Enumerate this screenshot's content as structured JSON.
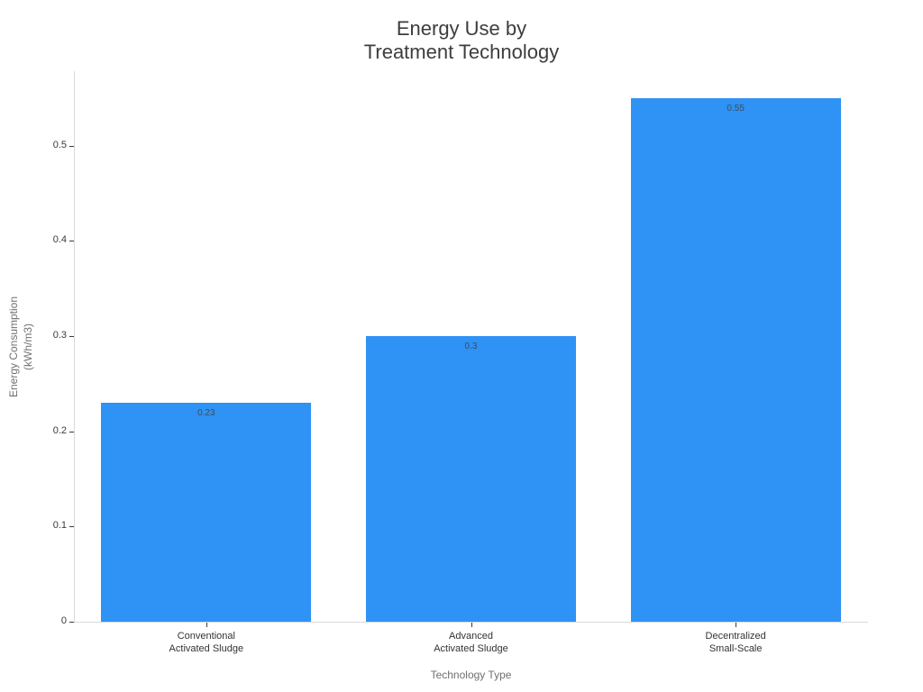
{
  "chart_data": {
    "type": "bar",
    "title": "Energy Use by\nTreatment Technology",
    "xlabel": "Technology Type",
    "ylabel": "Energy Consumption\n(kWh/m3)",
    "categories": [
      "Conventional\nActivated Sludge",
      "Advanced\nActivated Sludge",
      "Decentralized\nSmall-Scale"
    ],
    "values": [
      0.23,
      0.3,
      0.55
    ],
    "value_labels": [
      "0.23",
      "0.3",
      "0.55"
    ],
    "yticks": [
      0,
      0.1,
      0.2,
      0.3,
      0.4,
      0.5
    ],
    "ytick_labels": [
      "0",
      "0.1",
      "0.2",
      "0.3",
      "0.4",
      "0.5"
    ],
    "ylim": [
      0,
      0.579
    ],
    "bar_color": "#2f92f5",
    "grid": false,
    "legend": "none",
    "colors": {
      "background": "#ffffff",
      "spine": "#d9d9d9",
      "title_text": "#3d3d3d",
      "axis_title_text": "#707070",
      "tick_text": "#3a3a3a",
      "category_text": "#333333",
      "value_label_text": "#3e4c59"
    }
  }
}
